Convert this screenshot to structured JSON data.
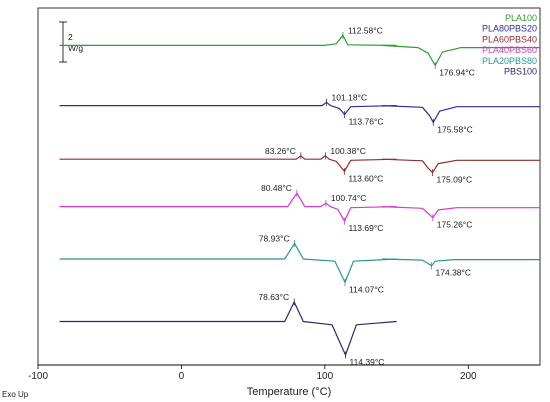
{
  "chart_data": {
    "type": "line",
    "xlabel": "Temperature (°C)",
    "xlim": [
      -100,
      250
    ],
    "x_ticks": [
      "-100",
      "0",
      "100",
      "200"
    ],
    "corner_label": "Exo Up",
    "scale_bar": {
      "value": "2",
      "unit": "W/g"
    },
    "legend_position": "top-right",
    "series": [
      {
        "name": "PLA100",
        "color": "#2e9e2e",
        "baseline": -0.35,
        "segments": [
          {
            "x": [
              -85,
              100,
              108,
              112.58,
              116,
              150
            ],
            "y": [
              0,
              0,
              0.15,
              0.9,
              0.05,
              0
            ]
          },
          {
            "x": [
              140,
              165,
              172,
              176.94,
              182,
              195,
              250
            ],
            "y": [
              0,
              -0.2,
              -0.7,
              -1.8,
              -0.6,
              -0.2,
              -0.2
            ]
          }
        ],
        "annotations": [
          {
            "x": 112.58,
            "y": 0.9,
            "text": "112.58°C",
            "anchor": "right"
          },
          {
            "x": 176.94,
            "y": -1.8,
            "text": "176.94°C",
            "anchor": "below-right"
          }
        ]
      },
      {
        "name": "PLA80PBS20",
        "color": "#2d2d9e",
        "baseline": -5.75,
        "segments": [
          {
            "x": [
              -85,
              98,
              101.18,
              104,
              110,
              113.76,
              118,
              150
            ],
            "y": [
              0,
              0,
              0.3,
              0,
              -0.25,
              -0.8,
              -0.1,
              0
            ]
          },
          {
            "x": [
              140,
              168,
              173,
              175.58,
              180,
              192,
              250
            ],
            "y": [
              0,
              -0.15,
              -0.9,
              -1.5,
              -0.5,
              -0.1,
              -0.1
            ]
          }
        ],
        "annotations": [
          {
            "x": 101.18,
            "y": 0.3,
            "text": "101.18°C",
            "anchor": "right"
          },
          {
            "x": 113.76,
            "y": -0.8,
            "text": "113.76°C",
            "anchor": "below-right"
          },
          {
            "x": 175.58,
            "y": -1.5,
            "text": "175.58°C",
            "anchor": "below-right"
          }
        ]
      },
      {
        "name": "PLA60PBS40",
        "color": "#8b2f2f",
        "baseline": -10.55,
        "segments": [
          {
            "x": [
              -85,
              80,
              83.26,
              86,
              97,
              100.38,
              103,
              108,
              113.6,
              118,
              150
            ],
            "y": [
              0,
              0,
              0.3,
              0,
              0,
              0.3,
              0,
              -0.2,
              -1.1,
              -0.1,
              0
            ]
          },
          {
            "x": [
              140,
              168,
              172,
              175.09,
              179,
              192,
              250
            ],
            "y": [
              0,
              -0.15,
              -0.8,
              -1.2,
              -0.4,
              -0.1,
              -0.1
            ]
          }
        ],
        "annotations": [
          {
            "x": 83.26,
            "y": 0.3,
            "text": "83.26°C",
            "anchor": "left"
          },
          {
            "x": 100.38,
            "y": 0.3,
            "text": "100.38°C",
            "anchor": "right"
          },
          {
            "x": 113.6,
            "y": -1.1,
            "text": "113.60°C",
            "anchor": "below-right"
          },
          {
            "x": 175.09,
            "y": -1.2,
            "text": "175.09°C",
            "anchor": "below-right"
          }
        ]
      },
      {
        "name": "PLA40PBS60",
        "color": "#d23ad2",
        "baseline": -14.8,
        "segments": [
          {
            "x": [
              -85,
              74,
              80.48,
              86,
              97,
              100.74,
              104,
              109,
              113.69,
              118,
              150
            ],
            "y": [
              0,
              0,
              1.2,
              0,
              0,
              0.3,
              0,
              -0.25,
              -1.3,
              -0.1,
              0
            ]
          },
          {
            "x": [
              140,
              168,
              172,
              175.26,
              179,
              192,
              250
            ],
            "y": [
              0,
              -0.15,
              -0.6,
              -1.0,
              -0.3,
              -0.1,
              -0.1
            ]
          }
        ],
        "annotations": [
          {
            "x": 80.48,
            "y": 1.2,
            "text": "80.48°C",
            "anchor": "left"
          },
          {
            "x": 100.74,
            "y": 0.3,
            "text": "100.74°C",
            "anchor": "right"
          },
          {
            "x": 113.69,
            "y": -1.3,
            "text": "113.69°C",
            "anchor": "below-right"
          },
          {
            "x": 175.26,
            "y": -1.0,
            "text": "175.26°C",
            "anchor": "below-right"
          }
        ]
      },
      {
        "name": "PLA20PBS80",
        "color": "#2a9494",
        "baseline": -19.5,
        "segments": [
          {
            "x": [
              -85,
              72,
              78.93,
              85,
              107,
              114.07,
              120,
              150
            ],
            "y": [
              0,
              0,
              1.4,
              0,
              -0.2,
              -2.1,
              -0.2,
              0
            ]
          },
          {
            "x": [
              140,
              168,
              172,
              174.38,
              177,
              190,
              250
            ],
            "y": [
              0,
              -0.1,
              -0.4,
              -0.6,
              -0.2,
              -0.05,
              -0.05
            ]
          }
        ],
        "annotations": [
          {
            "x": 78.93,
            "y": 1.4,
            "text": "78.93°C",
            "anchor": "left"
          },
          {
            "x": 114.07,
            "y": -2.1,
            "text": "114.07°C",
            "anchor": "below-right"
          },
          {
            "x": 174.38,
            "y": -0.6,
            "text": "174.38°C",
            "anchor": "below-right"
          }
        ]
      },
      {
        "name": "PBS100",
        "color": "#2b2b6b",
        "baseline": -25.1,
        "segments": [
          {
            "x": [
              -85,
              72,
              78.63,
              85,
              105,
              114.39,
              122,
              150
            ],
            "y": [
              0,
              0,
              1.75,
              0,
              -0.3,
              -3.0,
              -0.3,
              0
            ]
          }
        ],
        "annotations": [
          {
            "x": 78.63,
            "y": 1.75,
            "text": "78.63°C",
            "anchor": "left"
          },
          {
            "x": 114.39,
            "y": -3.0,
            "text": "114.39°C",
            "anchor": "below-right"
          }
        ]
      }
    ]
  }
}
